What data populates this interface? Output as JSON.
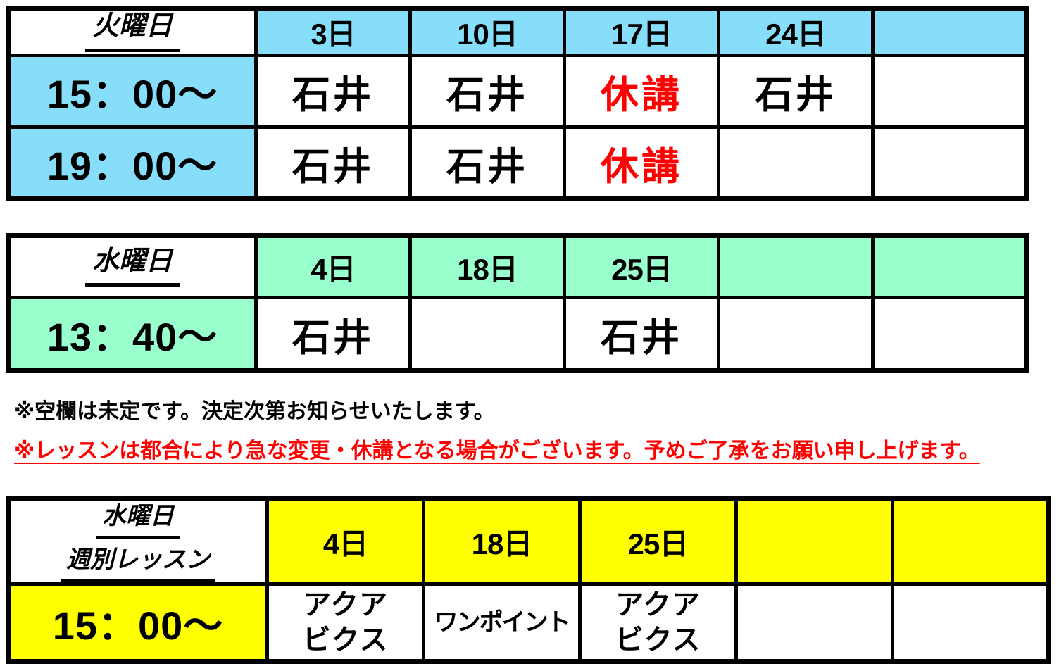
{
  "colors": {
    "tuesday_accent": "#87DEFA",
    "wednesday_accent": "#99FFCC",
    "weekly_lesson_accent": "#FFFF00",
    "cancelled_text": "#FF0000",
    "warning_note_text": "#FF0000",
    "grid_border": "#000000"
  },
  "tuesday_table": {
    "day_label": "火曜日",
    "columns": [
      "3日",
      "10日",
      "17日",
      "24日",
      ""
    ],
    "rows": [
      {
        "time": "15：00～",
        "cells": [
          "石井",
          "石井",
          "休講",
          "石井",
          ""
        ]
      },
      {
        "time": "19：00～",
        "cells": [
          "石井",
          "石井",
          "休講",
          "",
          ""
        ]
      }
    ],
    "cancelled_label": "休講"
  },
  "wednesday_table": {
    "day_label": "水曜日",
    "columns": [
      "4日",
      "18日",
      "25日",
      "",
      ""
    ],
    "rows": [
      {
        "time": "13：40～",
        "cells": [
          "石井",
          "",
          "石井",
          "",
          ""
        ]
      }
    ]
  },
  "notes": {
    "blank_note": "※空欄は未定です。決定次第お知らせいたします。",
    "warning_note": "※レッスンは都合により急な変更・休講となる場合がございます。予めご了承をお願い申し上げます。"
  },
  "weekly_table": {
    "day_label_line1": "水曜日",
    "day_label_line2": "週別レッスン",
    "columns": [
      "4日",
      "18日",
      "25日",
      "",
      ""
    ],
    "rows": [
      {
        "time": "15：00～",
        "cells": [
          "アクア\nビクス",
          "ワンポイント",
          "アクア\nビクス",
          "",
          ""
        ]
      }
    ]
  }
}
